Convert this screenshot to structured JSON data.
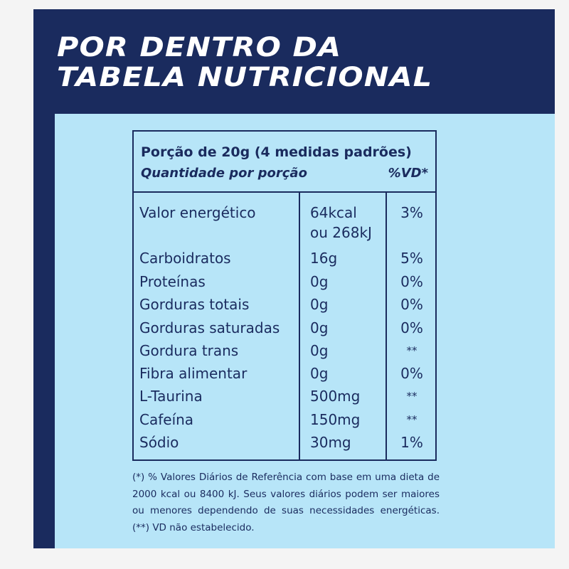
{
  "title": {
    "line1": "POR DENTRO DA",
    "line2": "TABELA NUTRICIONAL"
  },
  "table": {
    "portion": "Porção de 20g (4 medidas padrões)",
    "quantity_label": "Quantidade por porção",
    "vd_label": "%VD*",
    "rows": [
      {
        "name": "Valor energético",
        "amount": "64kcal",
        "amount2": "ou 268kJ",
        "vd": "3%"
      },
      {
        "name": "Carboidratos",
        "amount": "16g",
        "vd": "5%"
      },
      {
        "name": "Proteínas",
        "amount": "0g",
        "vd": "0%"
      },
      {
        "name": "Gorduras totais",
        "amount": "0g",
        "vd": "0%"
      },
      {
        "name": "Gorduras saturadas",
        "amount": "0g",
        "vd": "0%"
      },
      {
        "name": "Gordura trans",
        "amount": "0g",
        "vd": "**"
      },
      {
        "name": "Fibra alimentar",
        "amount": "0g",
        "vd": "0%"
      },
      {
        "name": "L-Taurina",
        "amount": "500mg",
        "vd": "**"
      },
      {
        "name": "Cafeína",
        "amount": "150mg",
        "vd": "**"
      },
      {
        "name": "Sódio",
        "amount": "30mg",
        "vd": "1%"
      }
    ]
  },
  "footnote": "(*) % Valores Diários de Referência com base em uma dieta de 2000 kcal ou 8400 kJ. Seus valores diários podem ser maiores ou menores dependendo de suas necessidades energéticas. (**) VD não estabelecido.",
  "colors": {
    "navy": "#1a2b5e",
    "light_blue": "#b7e5f8",
    "white": "#ffffff"
  }
}
